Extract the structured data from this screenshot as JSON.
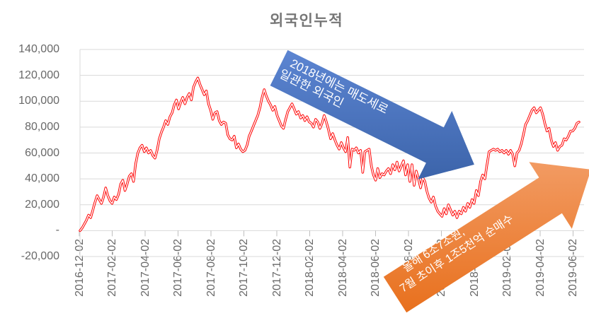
{
  "chart_data": {
    "type": "line",
    "title": "외국인누적",
    "legend": "none",
    "grid": "horizontal",
    "y_axis": {
      "min": -20000,
      "max": 140000,
      "step": 20000,
      "tick_labels_top_to_bottom": [
        "140,000",
        "120,000",
        "100,000",
        "80,000",
        "60,000",
        "40,000",
        "20,000",
        "-",
        "-20,000"
      ]
    },
    "x_axis": {
      "tick_labels": [
        "2016-12-02",
        "2017-02-02",
        "2017-04-02",
        "2017-06-02",
        "2017-08-02",
        "2017-10-02",
        "2017-12-02",
        "2018-02-02",
        "2018-04-02",
        "2018-06-02",
        "2018-08-02",
        "2018-10-02",
        "2018-12-02",
        "2019-02-02",
        "2019-04-02",
        "2019-06-02"
      ],
      "label_rotation_deg": -90
    },
    "series": [
      {
        "name": "외국인누적",
        "color": "#FF0000",
        "core_color": "#FFFFFF",
        "values": [
          0,
          2000,
          5000,
          8000,
          12000,
          10000,
          16000,
          22000,
          27000,
          24000,
          21000,
          26000,
          33000,
          27000,
          23000,
          21000,
          26000,
          24000,
          28000,
          36000,
          39000,
          31000,
          36000,
          42000,
          44000,
          38000,
          52000,
          60000,
          64000,
          66000,
          61000,
          64000,
          60000,
          62000,
          58000,
          56000,
          62000,
          71000,
          76000,
          80000,
          85000,
          82000,
          88000,
          91000,
          97000,
          101000,
          94000,
          99000,
          103000,
          98000,
          103000,
          106000,
          101000,
          111000,
          115000,
          118000,
          113000,
          109000,
          105000,
          108000,
          98000,
          93000,
          86000,
          91000,
          92000,
          85000,
          82000,
          84000,
          83000,
          74000,
          71000,
          70000,
          73000,
          64000,
          67000,
          63000,
          61000,
          62000,
          66000,
          73000,
          77000,
          81000,
          85000,
          89000,
          95000,
          103000,
          109000,
          104000,
          100000,
          97000,
          93000,
          96000,
          89000,
          85000,
          81000,
          79000,
          86000,
          92000,
          95000,
          98000,
          94000,
          90000,
          92000,
          87000,
          89000,
          85000,
          88000,
          84000,
          83000,
          80000,
          86000,
          84000,
          79000,
          83000,
          89000,
          84000,
          78000,
          71000,
          75000,
          70000,
          66000,
          63000,
          68000,
          64000,
          61000,
          72000,
          49000,
          63000,
          62000,
          64000,
          60000,
          62000,
          45000,
          61000,
          62000,
          63000,
          50000,
          43000,
          39000,
          48000,
          41000,
          44000,
          43000,
          46000,
          48000,
          44000,
          51000,
          47000,
          53000,
          46000,
          50000,
          54000,
          43000,
          51000,
          38000,
          51000,
          35000,
          46000,
          40000,
          33000,
          41000,
          38000,
          30000,
          25000,
          22000,
          26000,
          19000,
          15000,
          13000,
          11000,
          17000,
          13000,
          20000,
          16000,
          12000,
          15000,
          10000,
          15000,
          13000,
          18000,
          15000,
          21000,
          18000,
          24000,
          21000,
          31000,
          27000,
          38000,
          43000,
          40000,
          51000,
          61000,
          62000,
          63000,
          62000,
          63000,
          61000,
          62000,
          60000,
          62000,
          59000,
          62000,
          59000,
          50000,
          60000,
          62000,
          67000,
          74000,
          82000,
          85000,
          89000,
          93000,
          95000,
          91000,
          93000,
          95000,
          90000,
          83000,
          77000,
          79000,
          70000,
          65000,
          68000,
          62000,
          65000,
          66000,
          71000,
          70000,
          73000,
          77000,
          77000,
          79000,
          83000,
          84000
        ]
      }
    ],
    "annotations": [
      {
        "shape": "block-arrow",
        "direction": "down-right",
        "base_color": "#4472C4",
        "gradient": [
          "#5C85D2",
          "#3C64AA"
        ],
        "lines": [
          "2018년에는 매도세로",
          "일관한 외국인"
        ]
      },
      {
        "shape": "block-arrow",
        "direction": "up-right",
        "base_color": "#ED7D31",
        "gradient": [
          "#F29B63",
          "#E8701D"
        ],
        "lines": [
          "올해 6조7조원,",
          "7월 초이후 1조5천억 순매수"
        ]
      }
    ],
    "colors": {
      "gridline": "#D9D9D9",
      "tick": "#BFBFBF",
      "axis_label": "#686868",
      "title": "#767676"
    }
  }
}
